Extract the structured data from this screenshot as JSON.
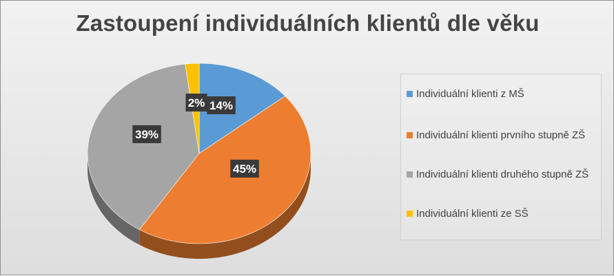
{
  "chart_data": {
    "type": "pie",
    "title": "Zastoupení individuálních klientů dle věku",
    "categories": [
      "Individuální klienti z MŠ",
      "Individuální klienti prvního stupně ZŠ",
      "Individuální klienti druhého stupně ZŠ",
      "Individuální klienti ze SŠ"
    ],
    "values": [
      14,
      45,
      39,
      2
    ],
    "data_labels": [
      "14%",
      "45%",
      "39%",
      "2%"
    ],
    "colors": [
      "#5b9bd5",
      "#ed7d31",
      "#a5a5a5",
      "#ffc000"
    ],
    "legend_position": "right",
    "style": "3d-pie"
  }
}
